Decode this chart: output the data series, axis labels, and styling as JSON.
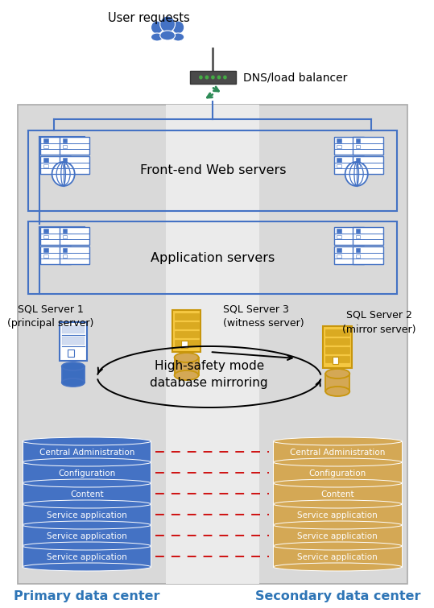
{
  "bg_color": "#d9d9d9",
  "blue_color": "#2E75B6",
  "blue_light": "#4472C4",
  "gold_border": "#D4A017",
  "gold_fill": "#F5C842",
  "gold_db": "#D4A855",
  "blue_fill": "#4472C4",
  "db_blue": "#3B6DC0",
  "text_blue_bold": "#2E75B6",
  "red_dash": "#CC0000",
  "title": "User requests",
  "dns_label": "DNS/load balancer",
  "frontend_label": "Front-end Web servers",
  "appserver_label": "Application servers",
  "sql1_label": "SQL Server 1\n(principal server)",
  "sql2_label": "SQL Server 2\n(mirror server)",
  "sql3_label": "SQL Server 3\n(witness server)",
  "mirror_label": "High-safety mode\ndatabase mirroring",
  "primary_label": "Primary data center",
  "secondary_label": "Secondary data center",
  "db_layers_blue": [
    "Central Administration",
    "Configuration",
    "Content",
    "Service application",
    "Service application",
    "Service application"
  ],
  "db_layers_gold": [
    "Central Administration",
    "Configuration",
    "Content",
    "Service application",
    "Service application",
    "Service application"
  ]
}
